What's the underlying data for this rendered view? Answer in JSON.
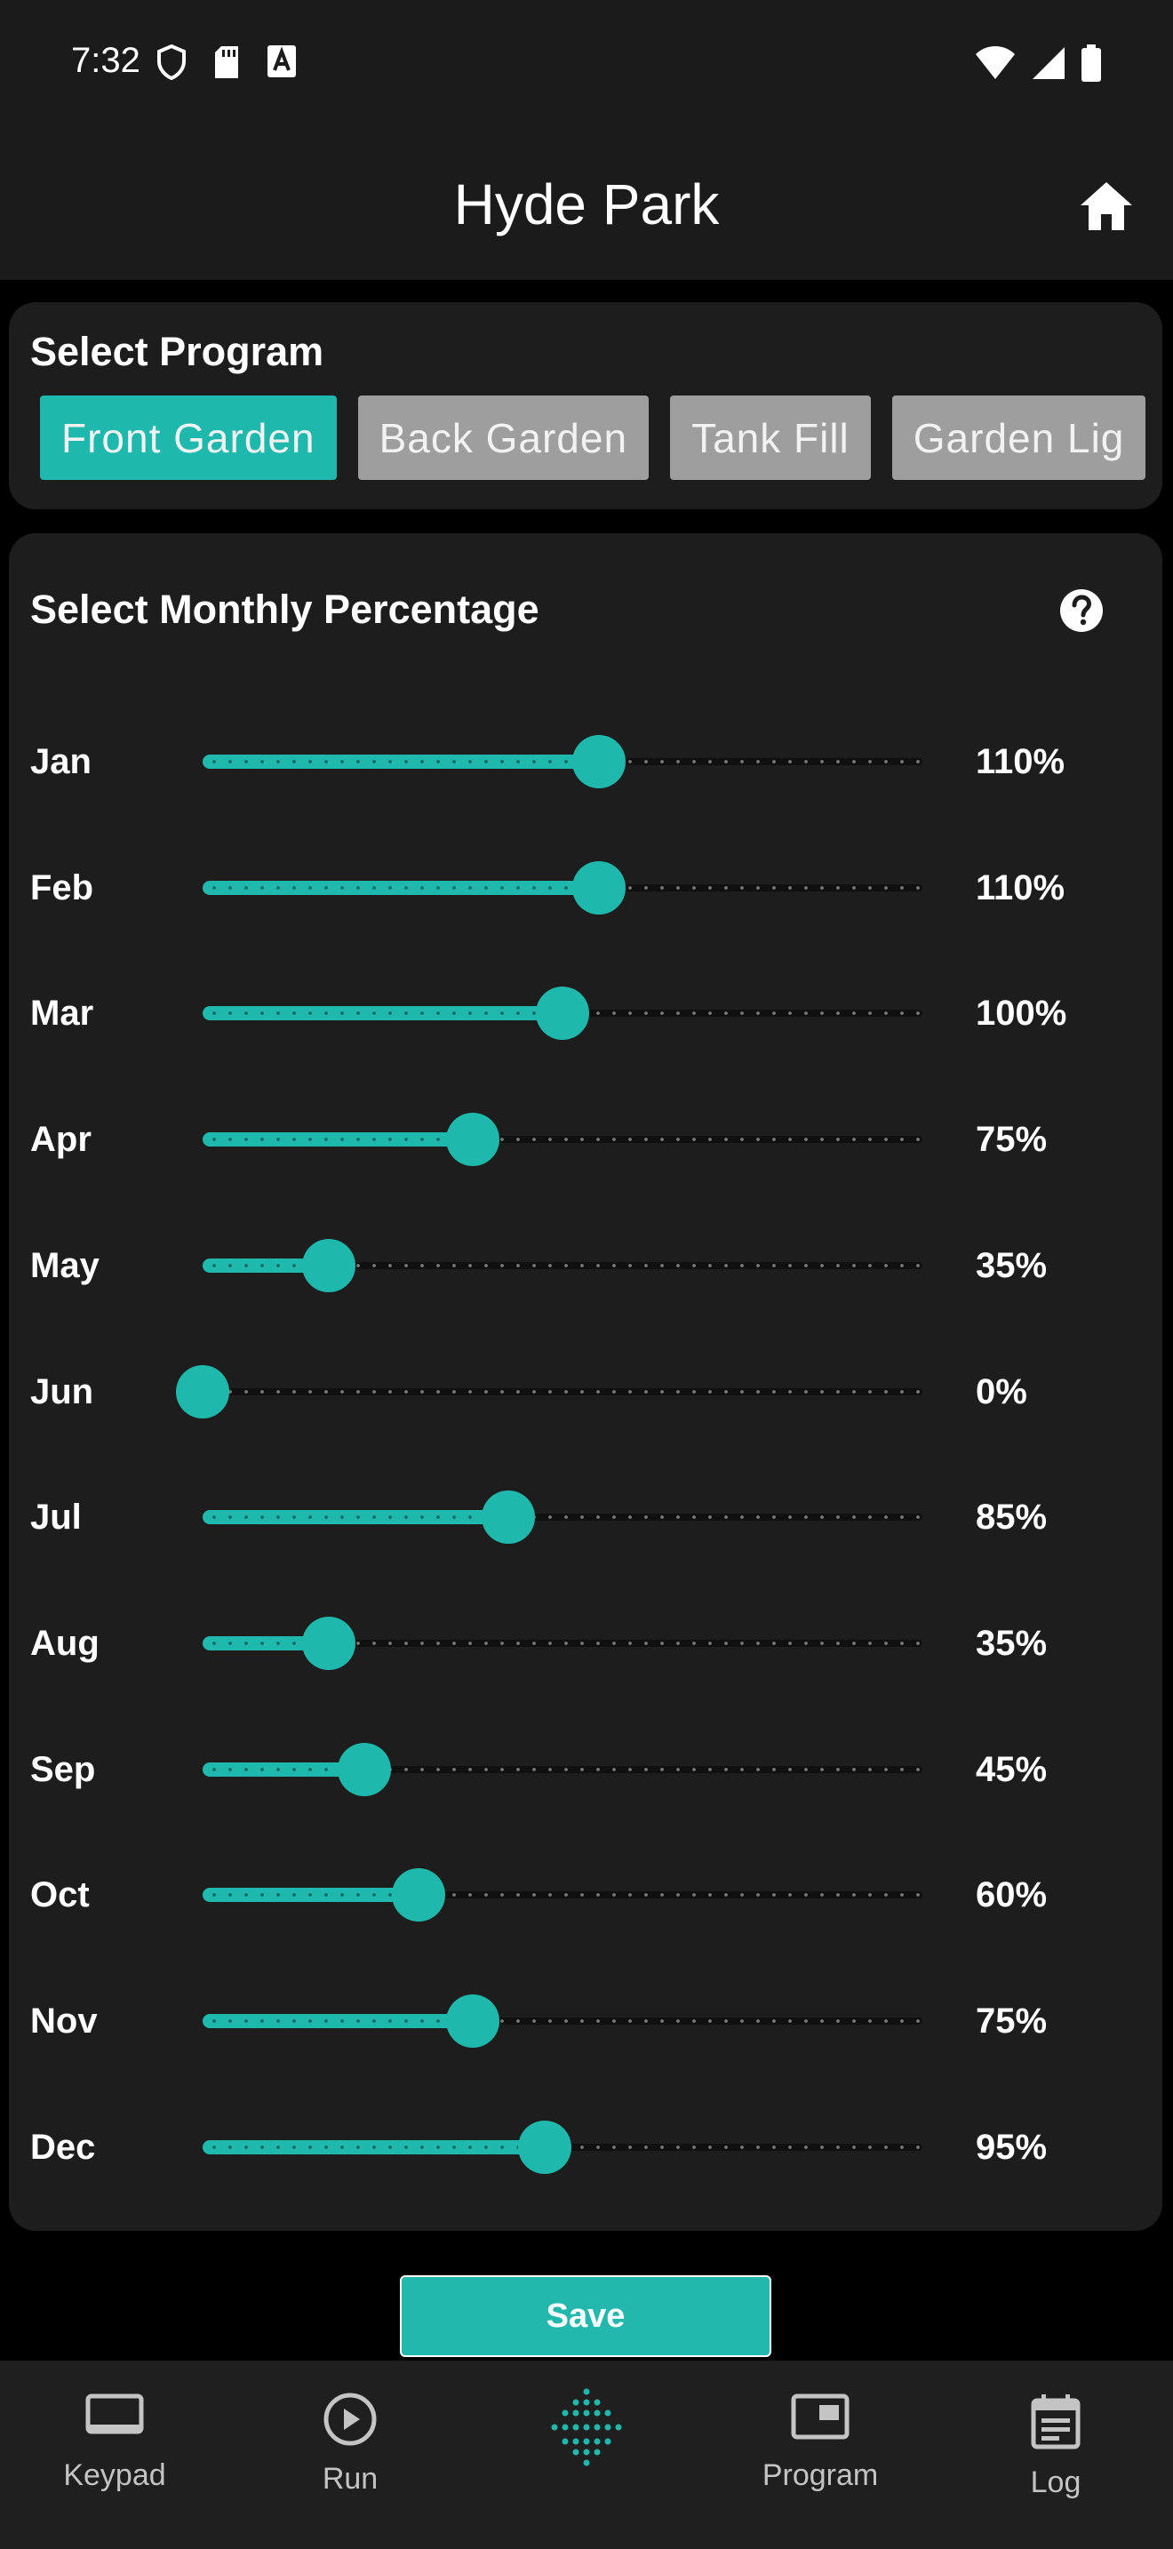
{
  "status_bar": {
    "time": "7:32",
    "icons_left": [
      "shield-icon",
      "sd-card-icon",
      "font-icon"
    ],
    "icons_right": [
      "wifi-icon",
      "signal-icon",
      "battery-icon"
    ]
  },
  "header": {
    "title": "Hyde Park",
    "home_icon": "home-icon"
  },
  "program_card": {
    "title": "Select Program",
    "programs": [
      {
        "label": "Front Garden",
        "selected": true
      },
      {
        "label": "Back Garden",
        "selected": false
      },
      {
        "label": "Tank Fill",
        "selected": false
      },
      {
        "label": "Garden Lig",
        "selected": false
      }
    ]
  },
  "monthly_card": {
    "title": "Select Monthly Percentage",
    "help_icon": "help-icon",
    "slider_max_percent": 200,
    "months": [
      {
        "label": "Jan",
        "value": 110,
        "display": "110%"
      },
      {
        "label": "Feb",
        "value": 110,
        "display": "110%"
      },
      {
        "label": "Mar",
        "value": 100,
        "display": "100%"
      },
      {
        "label": "Apr",
        "value": 75,
        "display": "75%"
      },
      {
        "label": "May",
        "value": 35,
        "display": "35%"
      },
      {
        "label": "Jun",
        "value": 0,
        "display": "0%"
      },
      {
        "label": "Jul",
        "value": 85,
        "display": "85%"
      },
      {
        "label": "Aug",
        "value": 35,
        "display": "35%"
      },
      {
        "label": "Sep",
        "value": 45,
        "display": "45%"
      },
      {
        "label": "Oct",
        "value": 60,
        "display": "60%"
      },
      {
        "label": "Nov",
        "value": 75,
        "display": "75%"
      },
      {
        "label": "Dec",
        "value": 95,
        "display": "95%"
      }
    ]
  },
  "save_button": {
    "label": "Save"
  },
  "bottom_nav": {
    "items": [
      {
        "label": "Keypad",
        "icon": "keypad-icon"
      },
      {
        "label": "Run",
        "icon": "play-circle-icon"
      },
      {
        "label": "",
        "icon": "dots-grid-icon"
      },
      {
        "label": "Program",
        "icon": "program-icon"
      },
      {
        "label": "Log",
        "icon": "calendar-log-icon"
      }
    ]
  },
  "colors": {
    "accent": "#1fb8ad",
    "chip_inactive": "#9e9e9e",
    "card_bg": "#1d1d1d",
    "app_bg": "#000000",
    "bar_bg": "#1b1b1b"
  }
}
